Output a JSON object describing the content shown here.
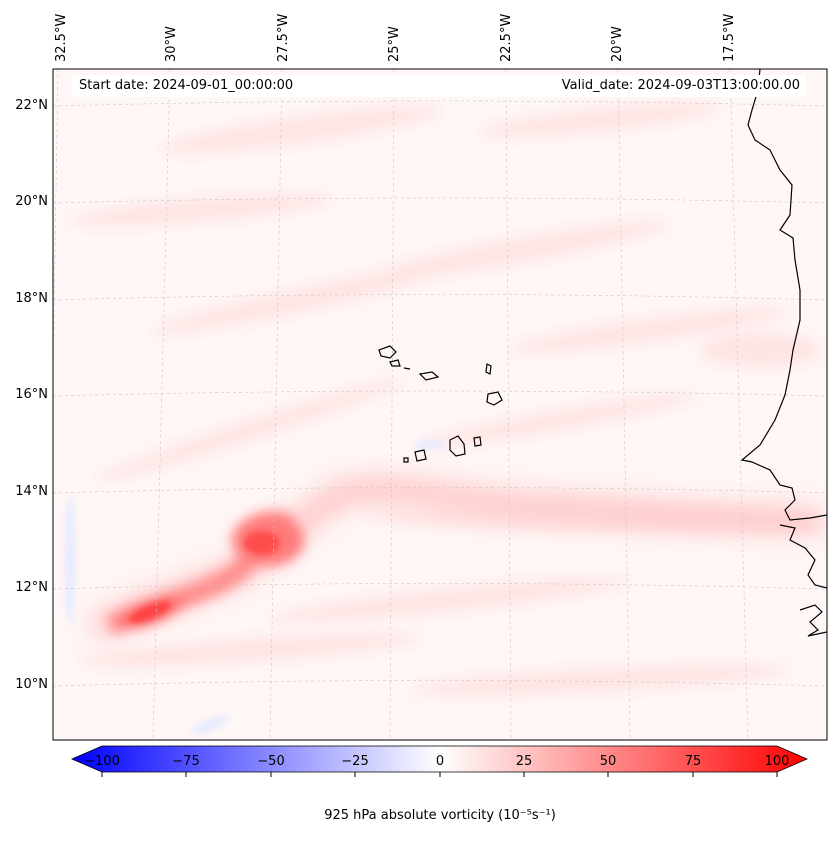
{
  "map": {
    "start_date": "Start date: 2024-09-01_00:00:00",
    "valid_date": "Valid_date: 2024-09-03T13:00:00.00",
    "longitude_labels": [
      "32.5°W",
      "30°W",
      "27.5°W",
      "25°W",
      "22.5°W",
      "20°W",
      "17.5°W"
    ],
    "latitude_labels": [
      "22°N",
      "20°N",
      "18°N",
      "16°N",
      "14°N",
      "12°N",
      "10°N"
    ],
    "colorbar": {
      "label": "925 hPa absolute vorticity (10⁻⁵s⁻¹)",
      "ticks": [
        "−100",
        "−75",
        "−50",
        "−25",
        "0",
        "25",
        "50",
        "75",
        "100"
      ],
      "min": -100,
      "max": 100,
      "extend": "both",
      "cmap": "bwr"
    },
    "colors": {
      "negative": "#0000ff",
      "positive": "#ff0000",
      "neutral": "#ffffff",
      "background_tint": "#fff2f2"
    }
  }
}
